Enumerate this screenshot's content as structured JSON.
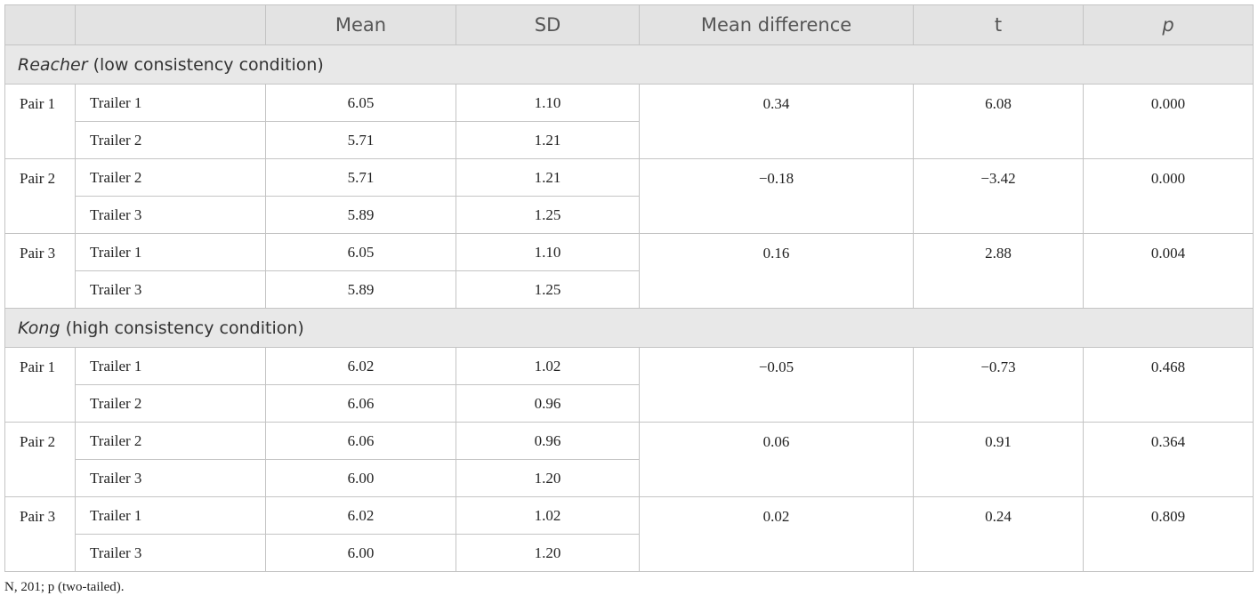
{
  "table": {
    "header": [
      "Mean",
      "SD",
      "Mean difference",
      "t",
      "p"
    ],
    "sections": [
      {
        "label_italic": "Reacher",
        "label_rest": "(low consistency condition)",
        "pairs": [
          {
            "name": "Pair 1",
            "rows": [
              {
                "trailer": "Trailer 1",
                "mean": "6.05",
                "sd": "1.10"
              },
              {
                "trailer": "Trailer 2",
                "mean": "5.71",
                "sd": "1.21"
              }
            ],
            "mean_difference": "0.34",
            "t": "6.08",
            "p": "0.000"
          },
          {
            "name": "Pair 2",
            "rows": [
              {
                "trailer": "Trailer 2",
                "mean": "5.71",
                "sd": "1.21"
              },
              {
                "trailer": "Trailer 3",
                "mean": "5.89",
                "sd": "1.25"
              }
            ],
            "mean_difference": "−0.18",
            "t": "−3.42",
            "p": "0.000"
          },
          {
            "name": "Pair 3",
            "rows": [
              {
                "trailer": "Trailer 1",
                "mean": "6.05",
                "sd": "1.10"
              },
              {
                "trailer": "Trailer 3",
                "mean": "5.89",
                "sd": "1.25"
              }
            ],
            "mean_difference": "0.16",
            "t": "2.88",
            "p": "0.004"
          }
        ]
      },
      {
        "label_italic": "Kong",
        "label_rest": "(high consistency condition)",
        "pairs": [
          {
            "name": "Pair 1",
            "rows": [
              {
                "trailer": "Trailer 1",
                "mean": "6.02",
                "sd": "1.02"
              },
              {
                "trailer": "Trailer 2",
                "mean": "6.06",
                "sd": "0.96"
              }
            ],
            "mean_difference": "−0.05",
            "t": "−0.73",
            "p": "0.468"
          },
          {
            "name": "Pair 2",
            "rows": [
              {
                "trailer": "Trailer 2",
                "mean": "6.06",
                "sd": "0.96"
              },
              {
                "trailer": "Trailer 3",
                "mean": "6.00",
                "sd": "1.20"
              }
            ],
            "mean_difference": "0.06",
            "t": "0.91",
            "p": "0.364"
          },
          {
            "name": "Pair 3",
            "rows": [
              {
                "trailer": "Trailer 1",
                "mean": "6.02",
                "sd": "1.02"
              },
              {
                "trailer": "Trailer 3",
                "mean": "6.00",
                "sd": "1.20"
              }
            ],
            "mean_difference": "0.02",
            "t": "0.24",
            "p": "0.809"
          }
        ]
      }
    ],
    "footnote": "N, 201; p (two-tailed)."
  }
}
